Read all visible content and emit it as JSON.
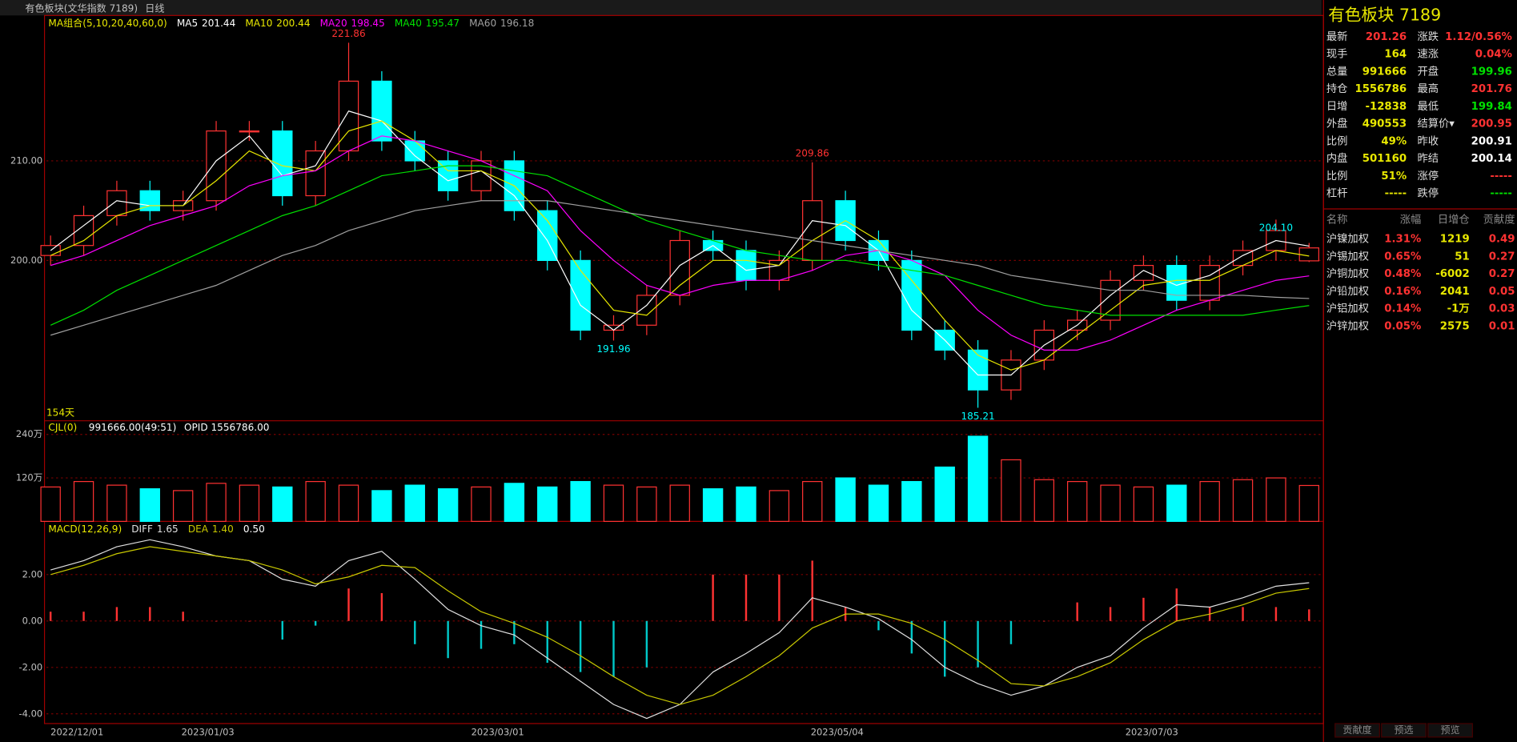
{
  "chart_data": [
    {
      "type": "candlestick",
      "title": "有色板块(文华指数 7189)",
      "period": "日线",
      "indicator": "MA组合(5,10,20,40,60,0)",
      "bar_count": "154天",
      "x": [
        0,
        4,
        8,
        12,
        16,
        20,
        24,
        28,
        32,
        36,
        40,
        44,
        48,
        52,
        56,
        60,
        64,
        68,
        72,
        76,
        80,
        84,
        88,
        92,
        96,
        100,
        104,
        108,
        112,
        116,
        120,
        124,
        128,
        132,
        136,
        140,
        144,
        148,
        152
      ],
      "xlim": [
        0,
        154
      ],
      "xticks": [
        {
          "value": 0,
          "label": "2022/12/01"
        },
        {
          "value": 19,
          "label": "2023/01/03"
        },
        {
          "value": 54,
          "label": "2023/03/01"
        },
        {
          "value": 95,
          "label": "2023/05/04"
        },
        {
          "value": 133,
          "label": "2023/07/03"
        }
      ],
      "open": [
        200.5,
        201.5,
        204.5,
        207,
        205,
        206,
        213,
        213,
        206.5,
        211,
        218,
        212,
        210,
        207,
        210,
        205,
        200,
        193,
        193.5,
        196.5,
        202,
        201,
        198,
        200,
        206,
        202,
        200,
        193,
        191,
        187,
        190,
        193,
        194,
        198,
        199.5,
        196,
        199.5,
        201,
        199.96
      ],
      "high": [
        202.5,
        205.5,
        208,
        208,
        207,
        214,
        214,
        214,
        212,
        221.86,
        219,
        213,
        211,
        211,
        211,
        206,
        201,
        194.5,
        197.5,
        203,
        203,
        202,
        201,
        209.86,
        207,
        203,
        201,
        194,
        192,
        191,
        194,
        195,
        199,
        200.5,
        200.5,
        200.5,
        202,
        204.1,
        201.76
      ],
      "low": [
        199.5,
        200.5,
        203.5,
        204,
        204,
        205,
        212,
        205.5,
        205.5,
        210,
        211,
        209,
        206,
        206,
        204,
        199,
        192,
        191.96,
        192.5,
        195.5,
        200,
        197,
        197,
        199,
        201,
        199,
        192,
        190,
        185.21,
        186,
        189,
        192,
        193,
        197,
        195,
        195,
        198.5,
        200,
        199.84
      ],
      "close": [
        201.5,
        204.5,
        207,
        205,
        206,
        213,
        213,
        206.5,
        211,
        218,
        212,
        210,
        207,
        210,
        205,
        200,
        193,
        193.5,
        196.5,
        202,
        201,
        198,
        200,
        206,
        202,
        200,
        193,
        191,
        187,
        190,
        193,
        194,
        198,
        199.5,
        196,
        199.5,
        201,
        203,
        201.26
      ],
      "up_color": "#ff3232",
      "down_color": "#00ffff",
      "series": [
        {
          "name": "MA5",
          "color": "#ffffff",
          "last": "201.44",
          "values": [
            201,
            203.5,
            206,
            205.5,
            205.5,
            210,
            212.5,
            208.5,
            209.5,
            215,
            214,
            210.5,
            208,
            209,
            206.5,
            202,
            195.5,
            193,
            195.5,
            199.5,
            201.5,
            199,
            199.5,
            204,
            203.5,
            201,
            195,
            192,
            188.5,
            188.5,
            191.5,
            193.5,
            196.5,
            199,
            197.5,
            198.5,
            200.5,
            202,
            201.44
          ]
        },
        {
          "name": "MA10",
          "color": "#e8e800",
          "last": "200.44",
          "values": [
            200.5,
            202,
            204.5,
            205.5,
            205.5,
            208,
            211,
            209.5,
            209,
            213,
            214,
            212,
            209,
            209,
            207.5,
            204,
            199,
            195,
            194.5,
            197.5,
            200,
            200,
            199.5,
            202,
            204,
            202,
            198,
            194,
            190.5,
            189,
            190,
            192.5,
            195,
            197.5,
            198,
            198,
            199.5,
            201,
            200.44
          ]
        },
        {
          "name": "MA20",
          "color": "#ff00ff",
          "last": "198.45",
          "values": [
            199.5,
            200.5,
            202,
            203.5,
            204.5,
            205.5,
            207.5,
            208.5,
            209,
            211,
            212.5,
            212,
            211,
            210,
            208.5,
            207,
            203,
            200,
            197.5,
            196.5,
            197.5,
            198,
            198,
            199,
            200.5,
            201,
            200,
            198.5,
            195,
            192.5,
            191,
            191,
            192,
            193.5,
            195,
            196,
            197,
            198,
            198.45
          ]
        },
        {
          "name": "MA40",
          "color": "#00e000",
          "last": "195.47",
          "values": [
            193.5,
            195,
            197,
            198.5,
            200,
            201.5,
            203,
            204.5,
            205.5,
            207,
            208.5,
            209,
            209.5,
            209.5,
            209,
            208.5,
            207,
            205.5,
            204,
            203,
            202,
            201,
            200.5,
            200,
            200,
            199.5,
            199,
            198.5,
            197.5,
            196.5,
            195.5,
            195,
            194.5,
            194.5,
            194.5,
            194.5,
            194.5,
            195,
            195.47
          ]
        },
        {
          "name": "MA60",
          "color": "#a0a0a0",
          "last": "196.18",
          "values": [
            192.5,
            193.5,
            194.5,
            195.5,
            196.5,
            197.5,
            199,
            200.5,
            201.5,
            203,
            204,
            205,
            205.5,
            206,
            206,
            206,
            205.5,
            205,
            204.5,
            204,
            203.5,
            203,
            202.5,
            202,
            201.5,
            201,
            200.5,
            200,
            199.5,
            198.5,
            198,
            197.5,
            197,
            197,
            196.5,
            196.5,
            196.5,
            196.3,
            196.18
          ]
        }
      ],
      "ylim": [
        184,
        224.4
      ],
      "yticks": [
        {
          "value": 200,
          "label": "200.00"
        },
        {
          "value": 210,
          "label": "210.00"
        }
      ],
      "annotations": [
        {
          "x": 36,
          "value": 221.86
        },
        {
          "x": 68,
          "value": 191.96
        },
        {
          "x": 92,
          "value": 209.86
        },
        {
          "x": 112,
          "value": 185.21
        },
        {
          "x": 148,
          "value": 204.1,
          "label": "204.10"
        }
      ]
    },
    {
      "type": "bar",
      "title": "CJL(0)",
      "subtitle": "991666.00(49:51)",
      "annotation": "OPID 1556786.00",
      "x": [
        0,
        4,
        8,
        12,
        16,
        20,
        24,
        28,
        32,
        36,
        40,
        44,
        48,
        52,
        56,
        60,
        64,
        68,
        72,
        76,
        80,
        84,
        88,
        92,
        96,
        100,
        104,
        108,
        112,
        116,
        120,
        124,
        128,
        132,
        136,
        140,
        144,
        148,
        152
      ],
      "xlim": [
        0,
        154
      ],
      "values": [
        95,
        110,
        100,
        90,
        85,
        105,
        100,
        95,
        110,
        100,
        85,
        100,
        90,
        95,
        105,
        95,
        110,
        100,
        95,
        100,
        90,
        95,
        85,
        110,
        120,
        100,
        110,
        150,
        235,
        170,
        115,
        110,
        100,
        95,
        100,
        110,
        115,
        120,
        99.17
      ],
      "ylim": [
        0,
        275
      ],
      "yticks": [
        {
          "value": 120,
          "label": "120万"
        },
        {
          "value": 240,
          "label": "240万"
        }
      ]
    },
    {
      "type": "macd",
      "title": "MACD(12,26,9)",
      "x": [
        0,
        4,
        8,
        12,
        16,
        20,
        24,
        28,
        32,
        36,
        40,
        44,
        48,
        52,
        56,
        60,
        64,
        68,
        72,
        76,
        80,
        84,
        88,
        92,
        96,
        100,
        104,
        108,
        112,
        116,
        120,
        124,
        128,
        132,
        136,
        140,
        144,
        148,
        152
      ],
      "xlim": [
        0,
        154
      ],
      "series": [
        {
          "name": "DIFF",
          "color": "#e0e0e0",
          "last": "1.65",
          "values": [
            2.2,
            2.6,
            3.2,
            3.5,
            3.2,
            2.8,
            2.6,
            1.8,
            1.5,
            2.6,
            3,
            1.8,
            0.5,
            -0.2,
            -0.6,
            -1.6,
            -2.6,
            -3.6,
            -4.2,
            -3.6,
            -2.2,
            -1.4,
            -0.5,
            1,
            0.6,
            0.1,
            -0.8,
            -2,
            -2.7,
            -3.2,
            -2.8,
            -2,
            -1.5,
            -0.3,
            0.7,
            0.6,
            1,
            1.5,
            1.65
          ]
        },
        {
          "name": "DEA",
          "color": "#c8c800",
          "last": "1.40",
          "values": [
            2,
            2.4,
            2.9,
            3.2,
            3,
            2.8,
            2.6,
            2.2,
            1.6,
            1.9,
            2.4,
            2.3,
            1.3,
            0.4,
            -0.1,
            -0.7,
            -1.5,
            -2.4,
            -3.2,
            -3.6,
            -3.2,
            -2.4,
            -1.5,
            -0.3,
            0.3,
            0.3,
            -0.1,
            -0.8,
            -1.7,
            -2.7,
            -2.8,
            -2.4,
            -1.8,
            -0.8,
            0,
            0.3,
            0.7,
            1.2,
            1.4
          ]
        }
      ],
      "histogram": {
        "last": "0.50",
        "values": [
          0.4,
          0.4,
          0.6,
          0.6,
          0.4,
          0,
          0,
          -0.8,
          -0.2,
          1.4,
          1.2,
          -1,
          -1.6,
          -1.2,
          -1,
          -1.8,
          -2.2,
          -2.4,
          -2,
          0,
          2,
          2,
          2,
          2.6,
          0.6,
          -0.4,
          -1.4,
          -2.4,
          -2,
          -1,
          0,
          0.8,
          0.6,
          1,
          1.4,
          0.6,
          0.6,
          0.6,
          0.5
        ]
      },
      "ylim": [
        -4.42,
        4.25
      ],
      "yticks": [
        {
          "value": -4,
          "label": "-4.00"
        },
        {
          "value": -2,
          "label": "-2.00"
        },
        {
          "value": 0,
          "label": "0.00"
        },
        {
          "value": 2,
          "label": "2.00"
        }
      ]
    }
  ],
  "quote": {
    "title": "有色板块  7189",
    "rows": [
      {
        "l1": "最新",
        "v1": "201.26",
        "c1": "#ff3232",
        "l2": "涨跌",
        "v2": "1.12/0.56%",
        "c2": "#ff3232"
      },
      {
        "l1": "现手",
        "v1": "164",
        "c1": "#e8e800",
        "l2": "速涨",
        "v2": "0.04%",
        "c2": "#ff3232"
      },
      {
        "l1": "总量",
        "v1": "991666",
        "c1": "#e8e800",
        "l2": "开盘",
        "v2": "199.96",
        "c2": "#00e000"
      },
      {
        "l1": "持仓",
        "v1": "1556786",
        "c1": "#e8e800",
        "l2": "最高",
        "v2": "201.76",
        "c2": "#ff3232"
      },
      {
        "l1": "日增",
        "v1": "-12838",
        "c1": "#e8e800",
        "l2": "最低",
        "v2": "199.84",
        "c2": "#00e000"
      },
      {
        "l1": "外盘",
        "v1": "490553",
        "c1": "#e8e800",
        "l2": "结算价▾",
        "v2": "200.95",
        "c2": "#ff3232"
      },
      {
        "l1": "比例",
        "v1": "49%",
        "c1": "#e8e800",
        "l2": "昨收",
        "v2": "200.91",
        "c2": "#ffffff"
      },
      {
        "l1": "内盘",
        "v1": "501160",
        "c1": "#e8e800",
        "l2": "昨结",
        "v2": "200.14",
        "c2": "#ffffff"
      },
      {
        "l1": "比例",
        "v1": "51%",
        "c1": "#e8e800",
        "l2": "涨停",
        "v2": "-----",
        "c2": "#ff3232"
      },
      {
        "l1": "杠杆",
        "v1": "-----",
        "c1": "#e8e800",
        "l2": "跌停",
        "v2": "-----",
        "c2": "#00e000"
      }
    ]
  },
  "ranking": {
    "header": [
      "名称",
      "涨幅",
      "日增仓",
      "贡献度"
    ],
    "rows": [
      [
        "沪镍加权",
        "1.31%",
        "1219",
        "0.49"
      ],
      [
        "沪锡加权",
        "0.65%",
        "51",
        "0.27"
      ],
      [
        "沪铜加权",
        "0.48%",
        "-6002",
        "0.27"
      ],
      [
        "沪铅加权",
        "0.16%",
        "2041",
        "0.05"
      ],
      [
        "沪铝加权",
        "0.14%",
        "-1万",
        "0.03"
      ],
      [
        "沪锌加权",
        "0.05%",
        "2575",
        "0.01"
      ]
    ]
  },
  "tabs": [
    "贡献度",
    "预选",
    "预览"
  ]
}
